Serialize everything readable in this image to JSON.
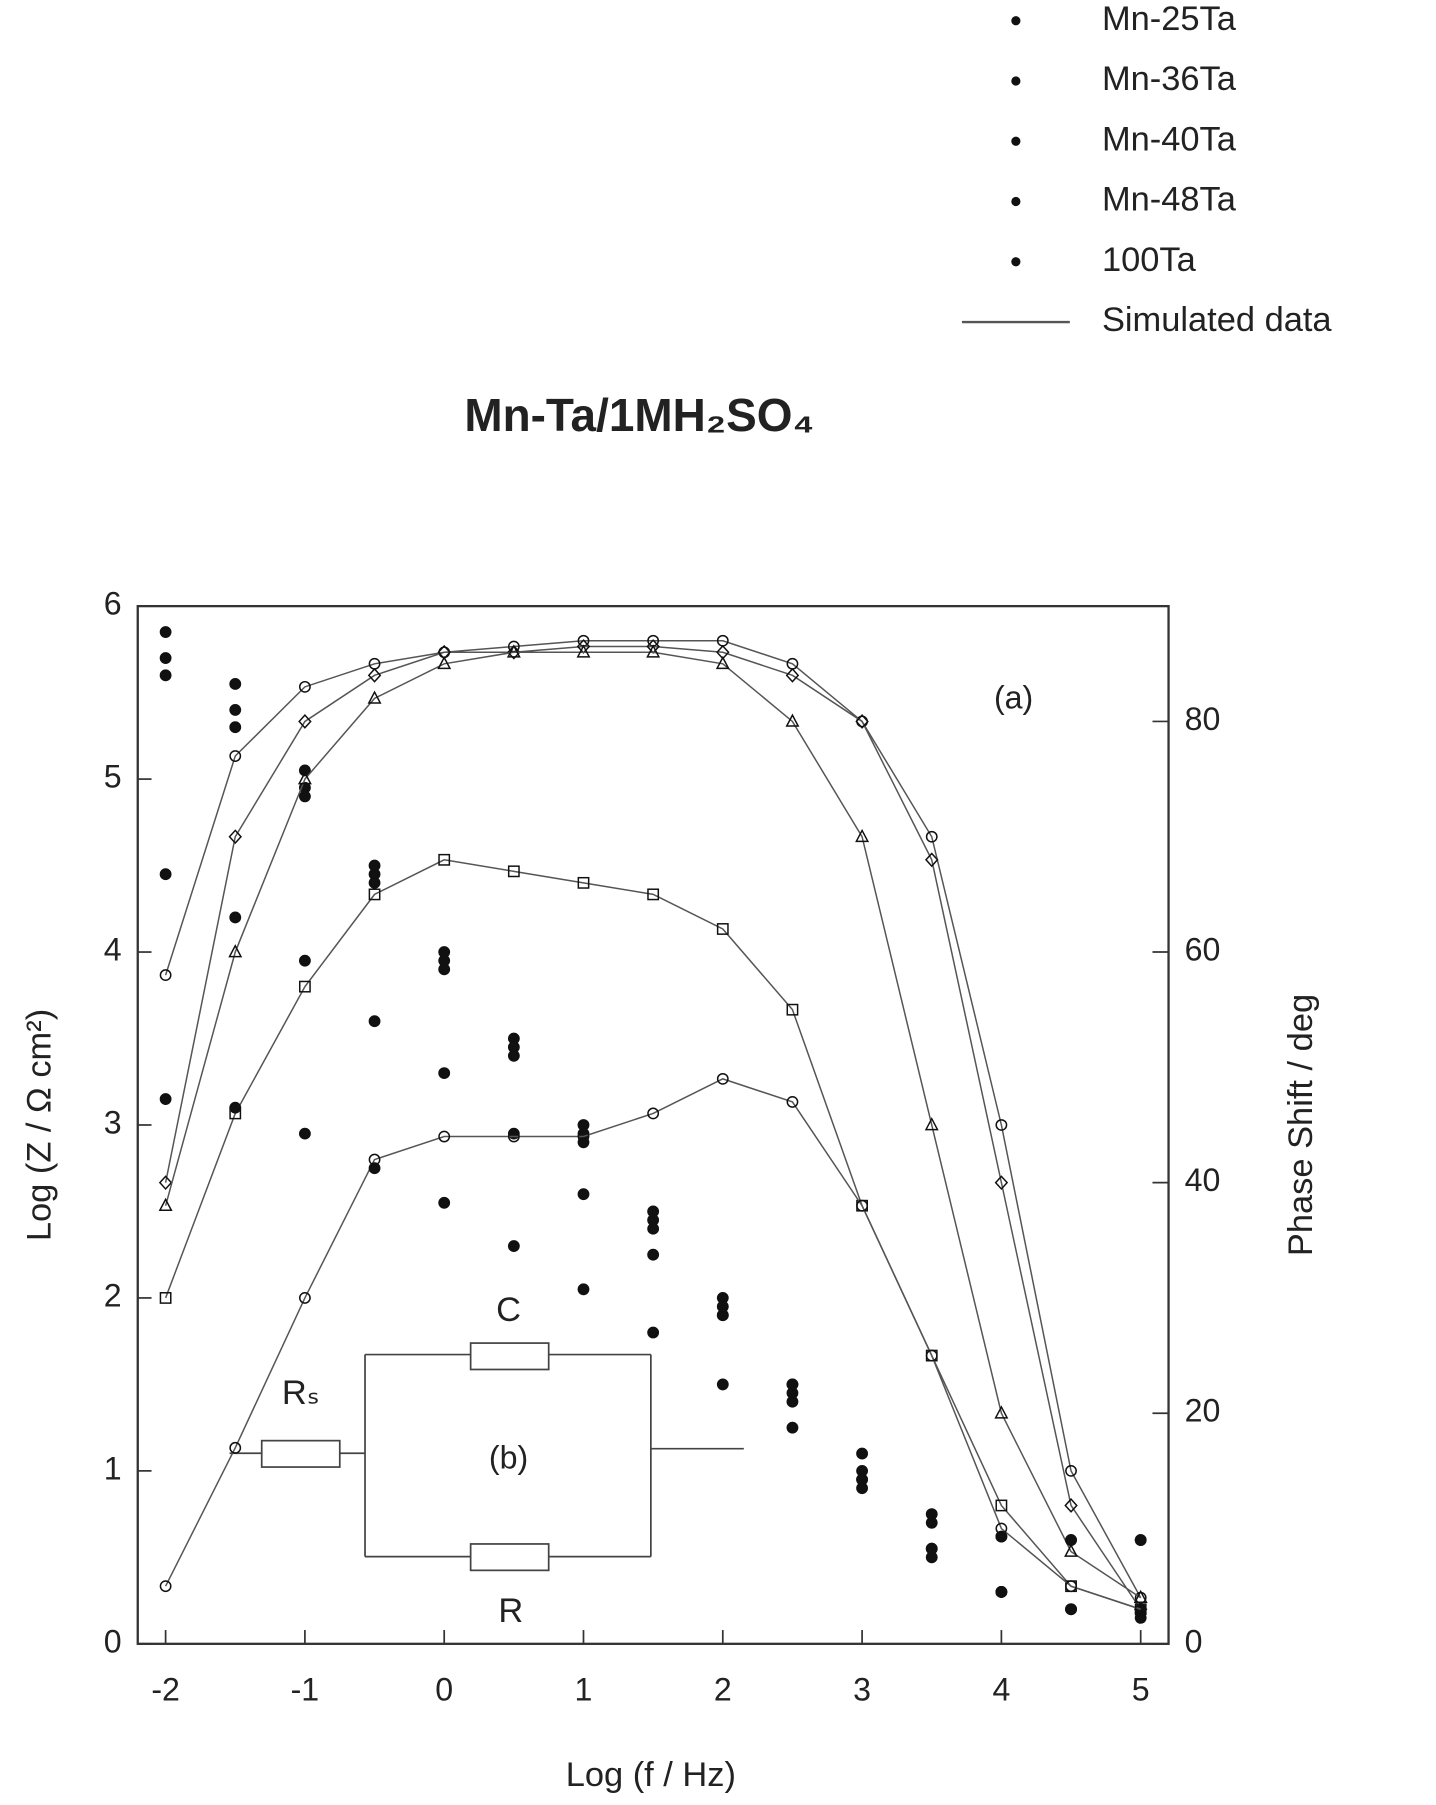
{
  "chart_data": {
    "type": "line",
    "title": "Mn-Ta/1MH₂SO₄",
    "x_label": "Log (f / Hz)",
    "y_label": "Log (Z / Ω cm²)",
    "y2_label": "Phase Shift / deg",
    "annotations": [
      "(a)",
      "(b)",
      "C",
      "R",
      "Rₛ"
    ],
    "x": [
      -2,
      -1.5,
      -1,
      -0.5,
      0,
      0.5,
      1,
      1.5,
      2,
      2.5,
      3,
      3.5,
      4,
      4.5,
      5
    ],
    "xlim": [
      -2.2,
      5.2
    ],
    "xticks": [
      -2,
      -1,
      0,
      1,
      2,
      3,
      4,
      5
    ],
    "ylim": [
      0,
      6
    ],
    "yticks": [
      0,
      1,
      2,
      3,
      4,
      5,
      6
    ],
    "y2lim": [
      0,
      90
    ],
    "y2ticks": [
      0,
      20,
      40,
      60,
      80
    ],
    "series": [
      {
        "name": "Mn-25Ta",
        "color": "#111111",
        "marker": "circle",
        "values": [
          5.85,
          5.55,
          5.05,
          4.5,
          4.0,
          3.5,
          3.0,
          2.5,
          2.0,
          1.5,
          1.0,
          0.55,
          0.3,
          0.2,
          0.18
        ],
        "y2_values": [
          58,
          77,
          83,
          85,
          86,
          86.5,
          87,
          87,
          87,
          85,
          80,
          70,
          45,
          15,
          4
        ]
      },
      {
        "name": "Mn-36Ta",
        "color": "#111111",
        "marker": "diamond",
        "values": [
          5.7,
          5.4,
          4.95,
          4.45,
          3.95,
          3.45,
          2.95,
          2.45,
          1.95,
          1.45,
          0.95,
          0.55,
          0.3,
          0.2,
          0.2
        ],
        "y2_values": [
          40,
          70,
          80,
          84,
          86,
          86,
          86.5,
          86.5,
          86,
          84,
          80,
          68,
          40,
          12,
          3
        ]
      },
      {
        "name": "Mn-40Ta",
        "color": "#111111",
        "marker": "triangle",
        "values": [
          5.6,
          5.3,
          4.9,
          4.4,
          3.9,
          3.4,
          2.9,
          2.4,
          1.9,
          1.4,
          0.9,
          0.5,
          0.3,
          0.2,
          0.15
        ],
        "y2_values": [
          38,
          60,
          75,
          82,
          85,
          86,
          86,
          86,
          85,
          80,
          70,
          45,
          20,
          8,
          4
        ]
      },
      {
        "name": "Mn-48Ta",
        "color": "#111111",
        "marker": "square",
        "values": [
          4.45,
          4.2,
          3.95,
          3.6,
          3.3,
          2.95,
          2.6,
          2.25,
          1.9,
          1.5,
          1.1,
          0.75,
          0.62,
          0.6,
          0.6
        ],
        "y2_values": [
          30,
          46,
          57,
          65,
          68,
          67,
          66,
          65,
          62,
          55,
          38,
          25,
          12,
          5,
          3
        ]
      },
      {
        "name": "100Ta",
        "color": "#111111",
        "marker": "circle",
        "values": [
          3.15,
          3.1,
          2.95,
          2.75,
          2.55,
          2.3,
          2.05,
          1.8,
          1.5,
          1.25,
          0.95,
          0.7,
          0.62,
          0.6,
          0.6
        ],
        "y2_values": [
          5,
          17,
          30,
          42,
          44,
          44,
          44,
          46,
          49,
          47,
          38,
          25,
          10,
          5,
          3
        ]
      }
    ],
    "simulated": {
      "name": "Simulated data",
      "color": "#555555"
    }
  }
}
